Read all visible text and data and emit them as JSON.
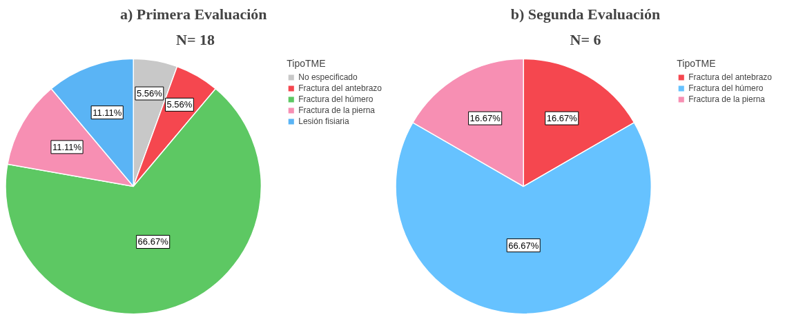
{
  "chart_data": [
    {
      "type": "pie",
      "title": "a)  Primera Evaluación",
      "subtitle": "N= 18",
      "legend_title": "TipoTME",
      "legend": "right",
      "categories": [
        "No especificado",
        "Fractura del antebrazo",
        "Fractura del húmero",
        "Fractura de la pierna",
        "Lesión fisiaria"
      ],
      "values": [
        5.56,
        5.56,
        66.67,
        11.11,
        11.11
      ],
      "colors": [
        "#c8c8c8",
        "#f5474f",
        "#5dc863",
        "#f78fb3",
        "#5ab4f5"
      ],
      "value_labels": [
        "5.56%",
        "5.56%",
        "66.67%",
        "11.11%",
        "11.11%"
      ]
    },
    {
      "type": "pie",
      "title": "b) Segunda Evaluación",
      "subtitle": "N= 6",
      "legend_title": "TipoTME",
      "legend": "right",
      "categories": [
        "Fractura del antebrazo",
        "Fractura del húmero",
        "Fractura de la pierna"
      ],
      "values": [
        16.67,
        66.67,
        16.67
      ],
      "colors": [
        "#f5474f",
        "#66c2ff",
        "#f78fb3"
      ],
      "value_labels": [
        "16.67%",
        "66.67%",
        "16.67%"
      ]
    }
  ]
}
